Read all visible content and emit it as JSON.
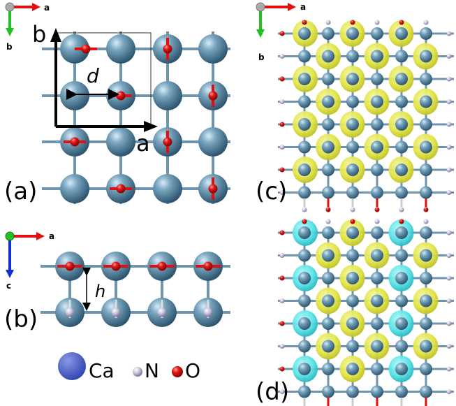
{
  "panels": {
    "a": {
      "label": "(a)",
      "axis_x": "a",
      "axis_y": "b",
      "cell_x": "a",
      "cell_y": "b",
      "distance": "d"
    },
    "b": {
      "label": "(b)",
      "axis_x": "a",
      "axis_y": "c",
      "height": "h"
    },
    "c": {
      "label": "(c)",
      "axis_x": "a",
      "axis_y": "b"
    },
    "d": {
      "label": "(d)"
    }
  },
  "legend": [
    {
      "symbol": "Ca",
      "color": "#5063c8"
    },
    {
      "symbol": "N",
      "color": "#c4c0d8"
    },
    {
      "symbol": "O",
      "color": "#e8141a"
    }
  ],
  "colors": {
    "ca": "#5b88a4",
    "bond": "#6f94ad",
    "n": "#c8c4dc",
    "o": "#e0151c",
    "isosurface_yellow": "#e6e84a",
    "isosurface_cyan": "#52e3e6",
    "axis_x": "#e01010",
    "axis_y_ab": "#22c022",
    "axis_y_c": "#1530d0"
  }
}
